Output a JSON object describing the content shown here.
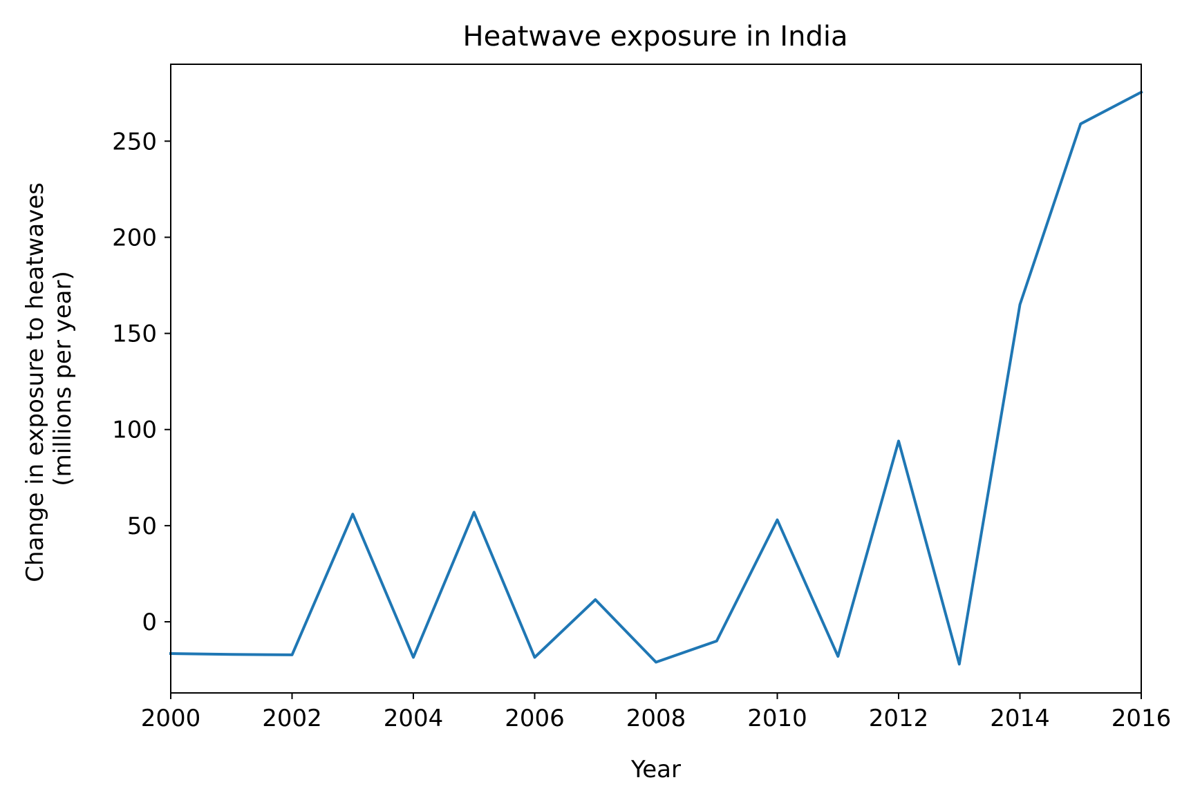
{
  "chart_data": {
    "type": "line",
    "title": "Heatwave exposure in India",
    "xlabel": "Year",
    "ylabel_lines": [
      "Change in exposure to heatwaves",
      "(millions per year)"
    ],
    "xlim": [
      2000,
      2016
    ],
    "ylim": [
      -37,
      290
    ],
    "xticks": [
      2000,
      2002,
      2004,
      2006,
      2008,
      2010,
      2012,
      2014,
      2016
    ],
    "yticks": [
      0,
      50,
      100,
      150,
      200,
      250
    ],
    "grid": false,
    "line_color": "#1f77b4",
    "series": [
      {
        "x": [
          2000,
          2001,
          2002,
          2003,
          2004,
          2005,
          2006,
          2007,
          2008,
          2009,
          2010,
          2011,
          2012,
          2013,
          2014,
          2015,
          2016
        ],
        "values": [
          -16.5,
          -17,
          -17.2,
          56,
          -18.5,
          57,
          -18.5,
          11.5,
          -21,
          -10,
          53,
          -18,
          94,
          -22,
          165,
          259,
          275.5
        ]
      }
    ]
  }
}
